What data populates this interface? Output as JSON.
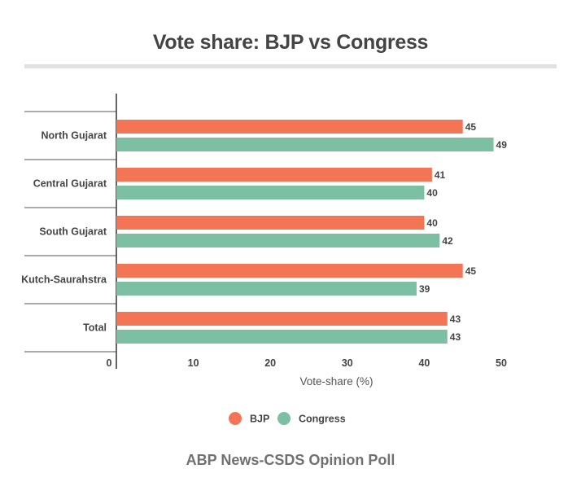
{
  "title": "Vote share: BJP vs Congress",
  "source": "ABP News-CSDS Opinion Poll",
  "chart_data": {
    "type": "bar",
    "orientation": "horizontal",
    "title": "Vote share: BJP vs Congress",
    "xlabel": "Vote-share (%)",
    "ylabel": "",
    "xlim": [
      0,
      50
    ],
    "xticks": [
      0,
      10,
      20,
      30,
      40,
      50
    ],
    "grid": false,
    "legend_position": "bottom",
    "categories": [
      "North Gujarat",
      "Central Gujarat",
      "South Gujarat",
      "Kutch-Saurahstra",
      "Total"
    ],
    "series": [
      {
        "name": "BJP",
        "color": "#f47555",
        "values": [
          45,
          41,
          40,
          45,
          43
        ]
      },
      {
        "name": "Congress",
        "color": "#7cbfa3",
        "values": [
          49,
          40,
          42,
          39,
          43
        ]
      }
    ]
  }
}
